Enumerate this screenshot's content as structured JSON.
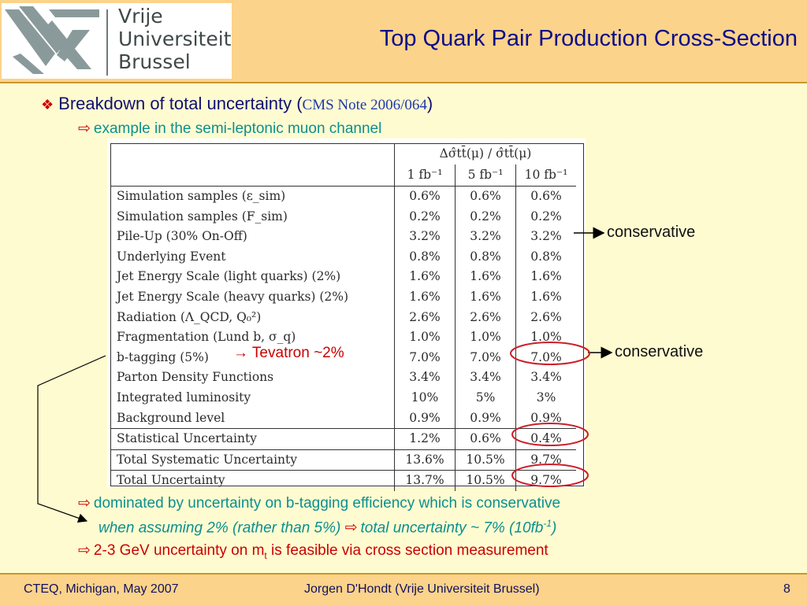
{
  "header": {
    "logo_lines": [
      "Vrije",
      "Universiteit",
      "Brussel"
    ],
    "title": "Top Quark Pair Production Cross-Section"
  },
  "bullet": {
    "text": "Breakdown of total uncertainty (",
    "ref": "CMS Note 2006/064",
    "close": ")"
  },
  "sub1": "example in the semi-leptonic muon channel",
  "table": {
    "header_formula": "Δσ̂tt̄(μ) / σ̂tt̄(μ)",
    "columns": [
      "1 fb⁻¹",
      "5 fb⁻¹",
      "10 fb⁻¹"
    ],
    "rows": [
      {
        "label": "Simulation samples (ε_sim)",
        "v": [
          "0.6%",
          "0.6%",
          "0.6%"
        ]
      },
      {
        "label": "Simulation samples (F_sim)",
        "v": [
          "0.2%",
          "0.2%",
          "0.2%"
        ]
      },
      {
        "label": "Pile-Up (30% On-Off)",
        "v": [
          "3.2%",
          "3.2%",
          "3.2%"
        ]
      },
      {
        "label": "Underlying Event",
        "v": [
          "0.8%",
          "0.8%",
          "0.8%"
        ]
      },
      {
        "label": "Jet Energy Scale (light quarks) (2%)",
        "v": [
          "1.6%",
          "1.6%",
          "1.6%"
        ]
      },
      {
        "label": "Jet Energy Scale (heavy quarks) (2%)",
        "v": [
          "1.6%",
          "1.6%",
          "1.6%"
        ]
      },
      {
        "label": "Radiation (Λ_QCD, Q₀²)",
        "v": [
          "2.6%",
          "2.6%",
          "2.6%"
        ]
      },
      {
        "label": "Fragmentation (Lund b, σ_q)",
        "v": [
          "1.0%",
          "1.0%",
          "1.0%"
        ]
      },
      {
        "label": "b-tagging (5%)",
        "v": [
          "7.0%",
          "7.0%",
          "7.0%"
        ]
      },
      {
        "label": "Parton Density Functions",
        "v": [
          "3.4%",
          "3.4%",
          "3.4%"
        ]
      },
      {
        "label": "Integrated luminosity",
        "v": [
          "10%",
          "5%",
          "3%"
        ]
      },
      {
        "label": "Background level",
        "v": [
          "0.9%",
          "0.9%",
          "0.9%"
        ]
      },
      {
        "label": "Statistical Uncertainty",
        "v": [
          "1.2%",
          "0.6%",
          "0.4%"
        ]
      },
      {
        "label": "Total Systematic Uncertainty",
        "v": [
          "13.6%",
          "10.5%",
          "9.7%"
        ]
      },
      {
        "label": "Total Uncertainty",
        "v": [
          "13.7%",
          "10.5%",
          "9.7%"
        ]
      }
    ]
  },
  "tevatron": "→ Tevatron ~2%",
  "notes": [
    "conservative",
    "conservative"
  ],
  "sub2": "dominated by uncertainty on b-tagging efficiency which is conservative",
  "sub3a": "when assuming 2% (rather than 5%)",
  "sub3b": "total uncertainty ~ 7% (10fb",
  "sub3c": ")",
  "sub3sup": "-1",
  "sub4a": "2-3 GeV uncertainty on m",
  "sub4sub": "t",
  "sub4b": " is feasible via cross section measurement",
  "footer": {
    "left": "CTEQ, Michigan, May 2007",
    "center": "Jorgen D'Hondt  (Vrije Universiteit Brussel)",
    "page": "8"
  },
  "colors": {
    "header": "#fcd38a",
    "background": "#fffbd0",
    "title": "#0c0c8a",
    "teal": "#0c8f8f",
    "red": "#cc0000"
  }
}
